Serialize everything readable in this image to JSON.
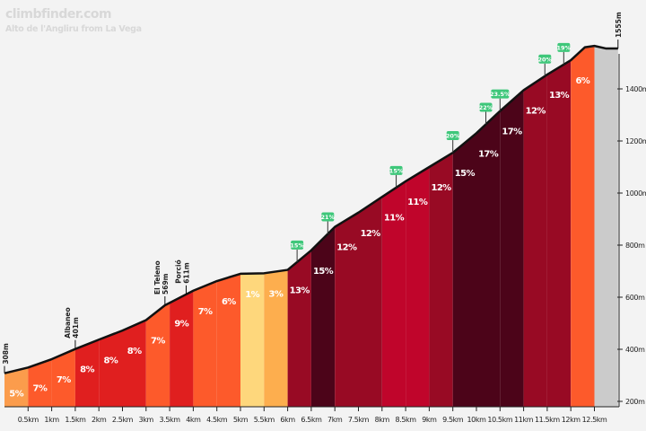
{
  "brand": "climbfinder.com",
  "subtitle": "Alto de l'Angliru from La Vega",
  "chart_data": {
    "type": "area",
    "title": "Alto de l'Angliru from La Vega",
    "xlabel": "",
    "ylabel": "",
    "x_unit": "km",
    "y_unit": "m",
    "xlim": [
      0,
      13
    ],
    "ylim": [
      180,
      1620
    ],
    "x_ticks": [
      "0.5km",
      "1km",
      "1.5km",
      "2km",
      "2.5km",
      "3km",
      "3.5km",
      "4km",
      "4.5km",
      "5km",
      "5.5km",
      "6km",
      "6.5km",
      "7km",
      "7.5km",
      "8km",
      "8.5km",
      "9km",
      "9.5km",
      "10km",
      "10.5km",
      "11km",
      "11.5km",
      "12km",
      "12.5km"
    ],
    "y_ticks": [
      "200m",
      "400m",
      "600m",
      "800m",
      "1000m",
      "1200m",
      "1400m"
    ],
    "start_label": "308m",
    "end_label": "1555m",
    "profile": [
      [
        0,
        308
      ],
      [
        0.5,
        330
      ],
      [
        1,
        362
      ],
      [
        1.5,
        401
      ],
      [
        2,
        437
      ],
      [
        2.5,
        472
      ],
      [
        3,
        512
      ],
      [
        3.4,
        569
      ],
      [
        3.85,
        611
      ],
      [
        4,
        625
      ],
      [
        4.5,
        662
      ],
      [
        5,
        690
      ],
      [
        5.5,
        692
      ],
      [
        6,
        705
      ],
      [
        6.5,
        780
      ],
      [
        7,
        870
      ],
      [
        7.5,
        925
      ],
      [
        8,
        985
      ],
      [
        8.5,
        1045
      ],
      [
        9,
        1100
      ],
      [
        9.5,
        1155
      ],
      [
        10,
        1230
      ],
      [
        10.5,
        1315
      ],
      [
        11,
        1395
      ],
      [
        11.5,
        1455
      ],
      [
        12,
        1510
      ],
      [
        12.3,
        1560
      ],
      [
        12.5,
        1565
      ],
      [
        12.75,
        1555
      ],
      [
        13,
        1555
      ]
    ],
    "segments": [
      {
        "from": 0,
        "to": 0.5,
        "label": "5%",
        "color": "#fb9c4c"
      },
      {
        "from": 0.5,
        "to": 1,
        "label": "7%",
        "color": "#fd5a2b"
      },
      {
        "from": 1,
        "to": 1.5,
        "label": "7%",
        "color": "#fd5a2b"
      },
      {
        "from": 1.5,
        "to": 2,
        "label": "8%",
        "color": "#e01f1f"
      },
      {
        "from": 2,
        "to": 2.5,
        "label": "8%",
        "color": "#e01f1f"
      },
      {
        "from": 2.5,
        "to": 3,
        "label": "8%",
        "color": "#e01f1f"
      },
      {
        "from": 3,
        "to": 3.5,
        "label": "7%",
        "color": "#fd5a2b"
      },
      {
        "from": 3.5,
        "to": 4,
        "label": "9%",
        "color": "#e01f1f"
      },
      {
        "from": 4,
        "to": 4.5,
        "label": "7%",
        "color": "#fd5a2b"
      },
      {
        "from": 4.5,
        "to": 5,
        "label": "6%",
        "color": "#fd5a2b"
      },
      {
        "from": 5,
        "to": 5.5,
        "label": "1%",
        "color": "#fed77c"
      },
      {
        "from": 5.5,
        "to": 6,
        "label": "3%",
        "color": "#fdae4e"
      },
      {
        "from": 6,
        "to": 6.5,
        "label": "13%",
        "color": "#980a24"
      },
      {
        "from": 6.5,
        "to": 7,
        "label": "15%",
        "color": "#4c0419"
      },
      {
        "from": 7,
        "to": 7.5,
        "label": "12%",
        "color": "#980a24"
      },
      {
        "from": 7.5,
        "to": 8,
        "label": "12%",
        "color": "#980a24"
      },
      {
        "from": 8,
        "to": 8.5,
        "label": "11%",
        "color": "#c0052b"
      },
      {
        "from": 8.5,
        "to": 9,
        "label": "11%",
        "color": "#c0052b"
      },
      {
        "from": 9,
        "to": 9.5,
        "label": "12%",
        "color": "#980a24"
      },
      {
        "from": 9.5,
        "to": 10,
        "label": "15%",
        "color": "#4c0419"
      },
      {
        "from": 10,
        "to": 10.5,
        "label": "17%",
        "color": "#4c0419"
      },
      {
        "from": 10.5,
        "to": 11,
        "label": "17%",
        "color": "#4c0419"
      },
      {
        "from": 11,
        "to": 11.5,
        "label": "12%",
        "color": "#980a24"
      },
      {
        "from": 11.5,
        "to": 12,
        "label": "13%",
        "color": "#980a24"
      },
      {
        "from": 12,
        "to": 12.5,
        "label": "6%",
        "color": "#fd5a2b"
      },
      {
        "from": 12.5,
        "to": 13,
        "label": "",
        "color": "#cbcbcb"
      }
    ],
    "max_gradient_flags": [
      {
        "x": 6.2,
        "label": "15%"
      },
      {
        "x": 6.85,
        "label": "21%"
      },
      {
        "x": 8.3,
        "label": "15%"
      },
      {
        "x": 9.5,
        "label": "20%"
      },
      {
        "x": 10.2,
        "label": "22%"
      },
      {
        "x": 10.5,
        "label": "23.5%"
      },
      {
        "x": 11.45,
        "label": "20%"
      },
      {
        "x": 11.85,
        "label": "19%"
      }
    ],
    "points_of_interest": [
      {
        "x": 1.5,
        "name": "Albaneo",
        "elevation": "401m"
      },
      {
        "x": 3.4,
        "name": "El Teleno",
        "elevation": "569m"
      },
      {
        "x": 3.85,
        "name": "Porció",
        "elevation": "611m"
      }
    ],
    "flag_color": "#3ec77a",
    "grid": false
  }
}
